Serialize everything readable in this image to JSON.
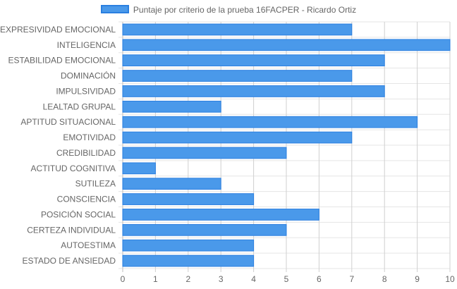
{
  "chart_data": {
    "type": "bar",
    "orientation": "horizontal",
    "categories": [
      "EXPRESIVIDAD EMOCIONAL",
      "INTELIGENCIA",
      "ESTABILIDAD EMOCIONAL",
      "DOMINACIÓN",
      "IMPULSIVIDAD",
      "LEALTAD GRUPAL",
      "APTITUD SITUACIONAL",
      "EMOTIVIDAD",
      "CREDIBILIDAD",
      "ACTITUD COGNITIVA",
      "SUTILEZA",
      "CONSCIENCIA",
      "POSICIÓN SOCIAL",
      "CERTEZA INDIVIDUAL",
      "AUTOESTIMA",
      "ESTADO DE ANSIEDAD"
    ],
    "series": [
      {
        "name": "Puntaje por criterio de la prueba 16FACPER - Ricardo Ortiz",
        "values": [
          7,
          10,
          8,
          7,
          8,
          3,
          9,
          7,
          5,
          1,
          3,
          4,
          6,
          5,
          4,
          4
        ],
        "color": "#4a99ea",
        "border_color": "#2a7fe0"
      }
    ],
    "xlim": [
      0,
      10
    ],
    "x_ticks": [
      "0",
      "1",
      "2",
      "3",
      "4",
      "5",
      "6",
      "7",
      "8",
      "9",
      "10"
    ],
    "grid": true,
    "legend_position": "top"
  }
}
